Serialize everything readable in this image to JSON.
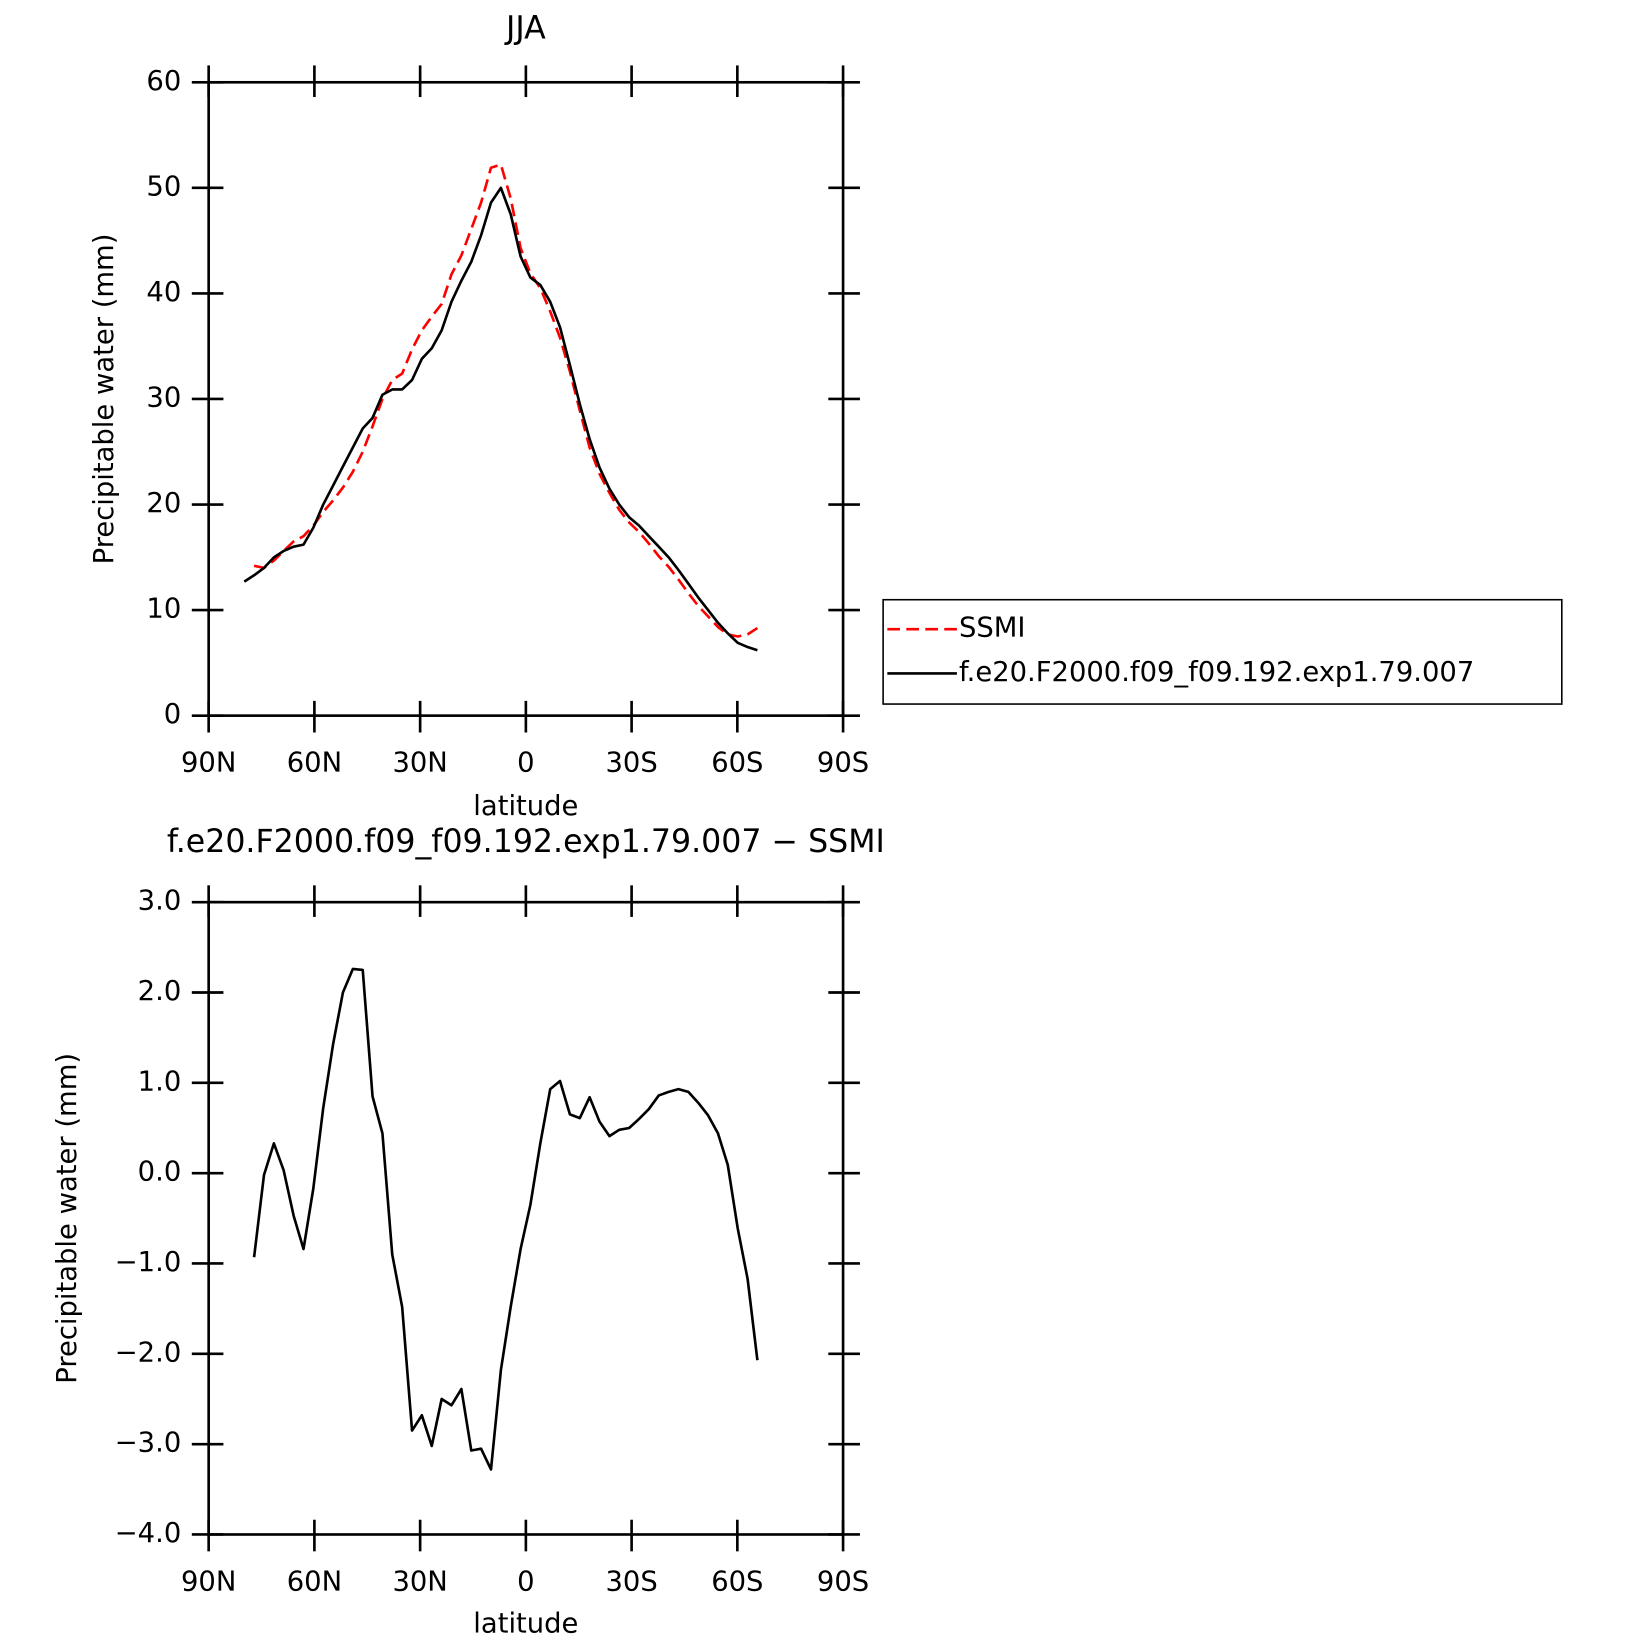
{
  "chart_data": [
    {
      "type": "line",
      "title": "JJA",
      "xlabel": "latitude",
      "ylabel": "Precipitable water (mm)",
      "x": [
        79.9,
        77.1,
        74.3,
        71.5,
        68.7,
        65.9,
        63.1,
        60.3,
        57.5,
        54.7,
        51.9,
        49.1,
        46.3,
        43.5,
        40.7,
        37.9,
        35.1,
        32.3,
        29.5,
        26.7,
        23.9,
        21.1,
        18.3,
        15.5,
        12.7,
        9.9,
        7.1,
        4.3,
        1.5,
        -1.3,
        -4.1,
        -6.9,
        -9.7,
        -12.5,
        -15.3,
        -18.1,
        -20.9,
        -23.7,
        -26.5,
        -29.3,
        -32.1,
        -34.9,
        -37.7,
        -40.5,
        -43.3,
        -46.1,
        -48.9,
        -51.7,
        -54.5,
        -57.3,
        -60.1,
        -62.9,
        -65.7
      ],
      "series": [
        {
          "name": "SSMI",
          "color": "#ff0000",
          "dash": "dashed",
          "values": [
            null,
            14.2,
            14.0,
            14.7,
            15.6,
            16.5,
            17.0,
            18.0,
            19.3,
            20.4,
            21.6,
            23.1,
            25.0,
            27.4,
            30.0,
            31.8,
            32.4,
            34.7,
            36.5,
            37.8,
            39.0,
            41.8,
            43.6,
            46.1,
            48.6,
            51.9,
            52.2,
            49.0,
            44.3,
            41.9,
            40.5,
            38.3,
            35.8,
            32.6,
            28.9,
            25.4,
            22.9,
            21.1,
            19.5,
            18.3,
            17.4,
            16.3,
            15.1,
            14.1,
            12.9,
            11.6,
            10.4,
            9.4,
            8.4,
            7.7,
            7.5,
            7.7,
            8.3
          ]
        },
        {
          "name": "f.e20.F2000.f09_f09.192.exp1.79.007",
          "color": "#000000",
          "dash": "solid",
          "values": [
            12.7,
            13.3,
            14.0,
            15.0,
            15.6,
            16.0,
            16.2,
            17.8,
            20.0,
            21.8,
            23.6,
            25.4,
            27.2,
            28.2,
            30.4,
            30.9,
            30.9,
            31.8,
            33.8,
            34.8,
            36.5,
            39.2,
            41.2,
            43.0,
            45.5,
            48.6,
            50.0,
            47.5,
            43.5,
            41.5,
            40.8,
            39.2,
            36.8,
            33.2,
            29.5,
            26.2,
            23.5,
            21.5,
            20.0,
            18.8,
            18.0,
            17.0,
            16.0,
            15.0,
            13.8,
            12.5,
            11.2,
            10.0,
            8.8,
            7.8,
            6.9,
            6.5,
            6.2
          ]
        }
      ],
      "xlim": [
        90,
        -90
      ],
      "xticks": [
        {
          "value": 90,
          "label": "90N"
        },
        {
          "value": 60,
          "label": "60N"
        },
        {
          "value": 30,
          "label": "30N"
        },
        0,
        {
          "value": -30,
          "label": "30S"
        },
        {
          "value": -60,
          "label": "60S"
        },
        {
          "value": -90,
          "label": "90S"
        }
      ],
      "ylim": [
        0,
        60
      ],
      "yticks": [
        0,
        10,
        20,
        30,
        40,
        50,
        60
      ],
      "legend": "outside-right"
    },
    {
      "type": "line",
      "title": "f.e20.F2000.f09_f09.192.exp1.79.007 − SSMI",
      "xlabel": "latitude",
      "ylabel": "Precipitable water (mm)",
      "x": [
        77.1,
        74.3,
        71.5,
        68.7,
        65.9,
        63.1,
        60.3,
        57.5,
        54.7,
        51.9,
        49.1,
        46.3,
        43.5,
        40.7,
        37.9,
        35.1,
        32.3,
        29.5,
        26.7,
        23.9,
        21.1,
        18.3,
        15.5,
        12.7,
        9.9,
        7.1,
        4.3,
        1.5,
        -1.3,
        -4.1,
        -6.9,
        -9.7,
        -12.5,
        -15.3,
        -18.1,
        -20.9,
        -23.7,
        -26.5,
        -29.3,
        -32.1,
        -34.9,
        -37.7,
        -40.5,
        -43.3,
        -46.1,
        -48.9,
        -51.7,
        -54.5,
        -57.3,
        -60.1,
        -62.9,
        -65.7
      ],
      "color": "#000000",
      "values": [
        -0.93,
        -0.02,
        0.33,
        0.03,
        -0.47,
        -0.84,
        -0.17,
        0.72,
        1.43,
        2.0,
        2.26,
        2.25,
        0.85,
        0.44,
        -0.9,
        -1.48,
        -2.85,
        -2.68,
        -3.02,
        -2.5,
        -2.57,
        -2.39,
        -3.07,
        -3.05,
        -3.28,
        -2.18,
        -1.48,
        -0.84,
        -0.35,
        0.33,
        0.93,
        1.02,
        0.65,
        0.61,
        0.84,
        0.57,
        0.41,
        0.48,
        0.5,
        0.6,
        0.71,
        0.86,
        0.9,
        0.93,
        0.9,
        0.78,
        0.64,
        0.44,
        0.09,
        -0.61,
        -1.17,
        -2.07
      ],
      "xlim": [
        90,
        -90
      ],
      "xticks": [
        {
          "value": 90,
          "label": "90N"
        },
        {
          "value": 60,
          "label": "60N"
        },
        {
          "value": 30,
          "label": "30N"
        },
        0,
        {
          "value": -30,
          "label": "30S"
        },
        {
          "value": -60,
          "label": "60S"
        },
        {
          "value": -90,
          "label": "90S"
        }
      ],
      "ylim": [
        -4,
        3
      ],
      "yticks": [
        {
          "value": -4,
          "label": "−4.0"
        },
        {
          "value": -3,
          "label": "−3.0"
        },
        {
          "value": -2,
          "label": "−2.0"
        },
        {
          "value": -1,
          "label": "−1.0"
        },
        {
          "value": 0,
          "label": "0.0"
        },
        {
          "value": 1,
          "label": "1.0"
        },
        {
          "value": 2,
          "label": "2.0"
        },
        {
          "value": 3,
          "label": "3.0"
        }
      ]
    }
  ]
}
